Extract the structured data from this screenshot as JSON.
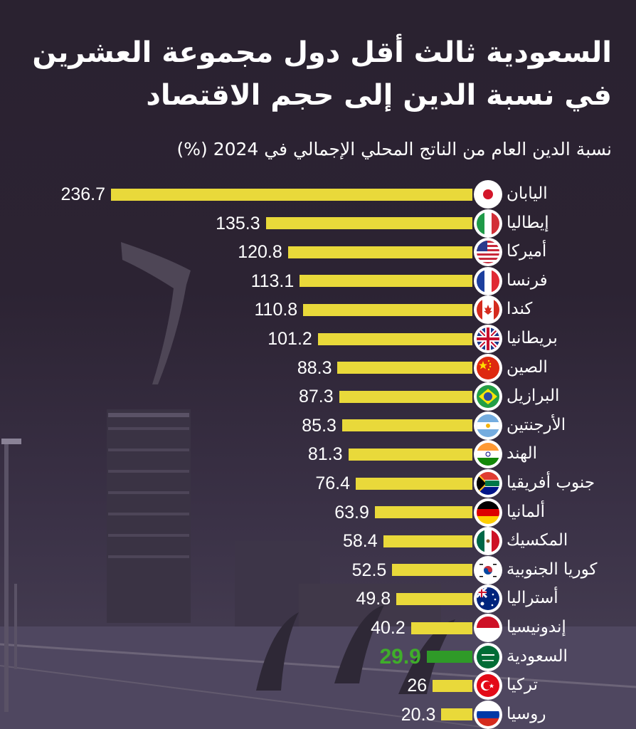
{
  "chart_data": {
    "type": "bar",
    "orientation": "horizontal",
    "title_lines": [
      "السعودية ثالث أقل دول مجموعة العشرين",
      "في نسبة الدين إلى حجم الاقتصاد"
    ],
    "subtitle": "نسبة الدين العام من الناتج المحلي الإجمالي في 2024 (%)",
    "xlim": [
      0,
      236.7
    ],
    "categories": [
      "اليابان",
      "إيطاليا",
      "أميركا",
      "فرنسا",
      "كندا",
      "بريطانيا",
      "الصين",
      "البرازيل",
      "الأرجنتين",
      "الهند",
      "جنوب أفريقيا",
      "ألمانيا",
      "المكسيك",
      "كوريا الجنوبية",
      "أستراليا",
      "إندونيسيا",
      "السعودية",
      "تركيا",
      "روسيا"
    ],
    "values": [
      236.7,
      135.3,
      120.8,
      113.1,
      110.8,
      101.2,
      88.3,
      87.3,
      85.3,
      81.3,
      76.4,
      63.9,
      58.4,
      52.5,
      49.8,
      40.2,
      29.9,
      26,
      20.3
    ],
    "value_labels": [
      "236.7",
      "135.3",
      "120.8",
      "113.1",
      "110.8",
      "101.2",
      "88.3",
      "87.3",
      "85.3",
      "81.3",
      "76.4",
      "63.9",
      "58.4",
      "52.5",
      "49.8",
      "40.2",
      "29.9",
      "26",
      "20.3"
    ],
    "flags": [
      "japan-flag",
      "italy-flag",
      "usa-flag",
      "france-flag",
      "canada-flag",
      "uk-flag",
      "china-flag",
      "brazil-flag",
      "argentina-flag",
      "india-flag",
      "south-africa-flag",
      "germany-flag",
      "mexico-flag",
      "south-korea-flag",
      "australia-flag",
      "indonesia-flag",
      "saudi-flag",
      "turkey-flag",
      "russia-flag"
    ],
    "highlight": "السعودية",
    "colors": {
      "bar": "#e9d93a",
      "highlight_bar": "#2f9a28",
      "highlight_text": "#3fae2a",
      "text": "#ffffff"
    }
  }
}
